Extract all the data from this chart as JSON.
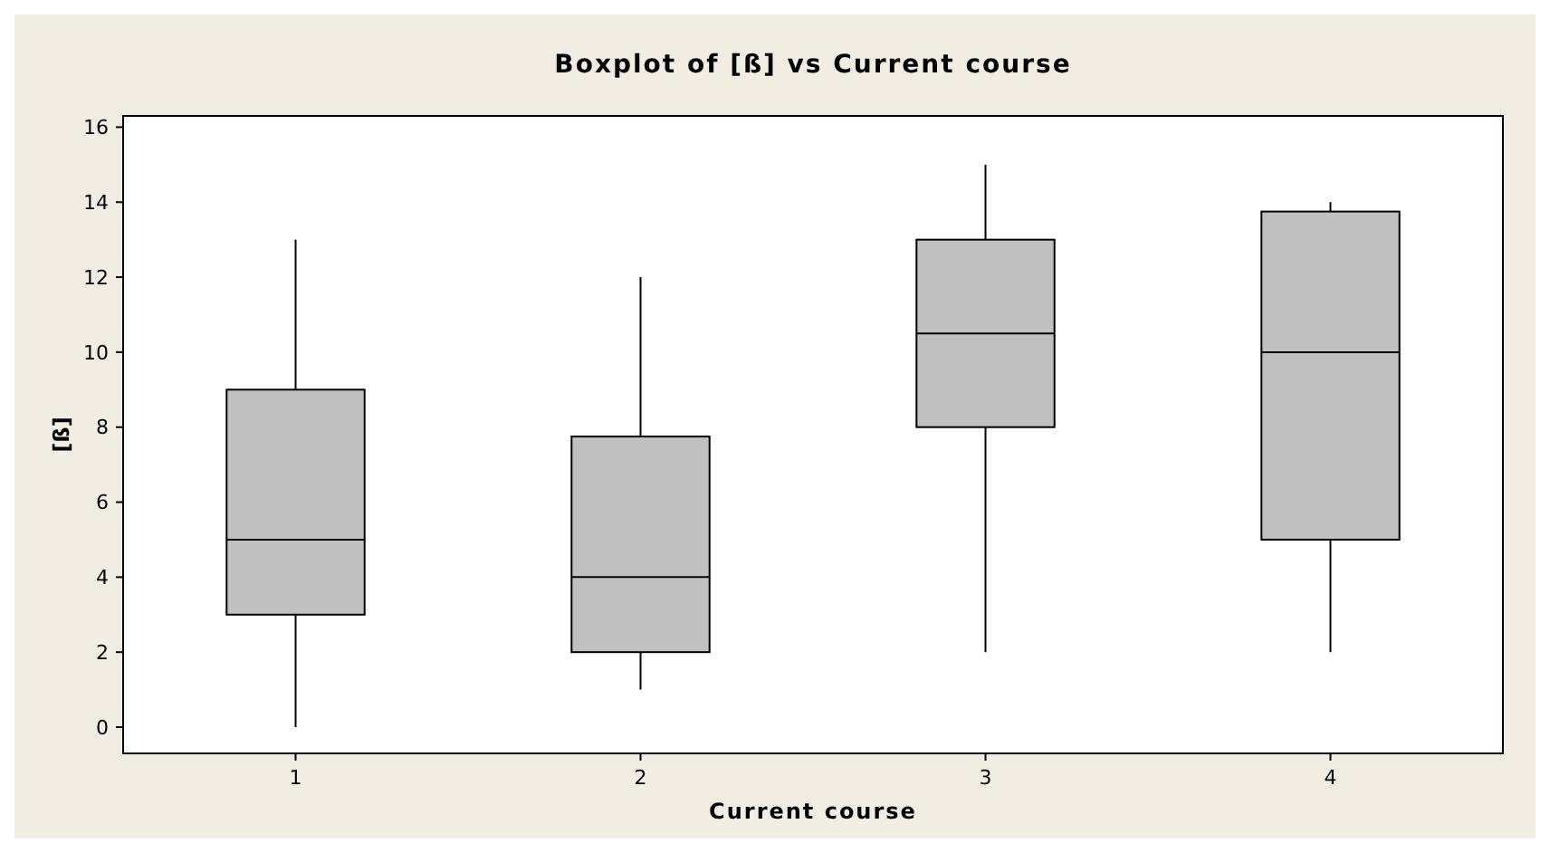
{
  "chart_data": {
    "type": "box",
    "title": "Boxplot of [ß] vs Current course",
    "xlabel": "Current course",
    "ylabel": "[ß]",
    "categories": [
      "1",
      "2",
      "3",
      "4"
    ],
    "boxes": [
      {
        "low": 0,
        "q1": 3,
        "median": 5,
        "q3": 9,
        "high": 13
      },
      {
        "low": 1,
        "q1": 2,
        "median": 4,
        "q3": 7.75,
        "high": 12
      },
      {
        "low": 2,
        "q1": 8,
        "median": 10.5,
        "q3": 13,
        "high": 15
      },
      {
        "low": 2,
        "q1": 5,
        "median": 10,
        "q3": 13.75,
        "high": 14
      }
    ],
    "color": "#c0c0c0",
    "ylim": [
      -0.7,
      16.3
    ],
    "yticks": [
      0,
      2,
      4,
      6,
      8,
      10,
      12,
      14,
      16
    ],
    "grid": false
  }
}
